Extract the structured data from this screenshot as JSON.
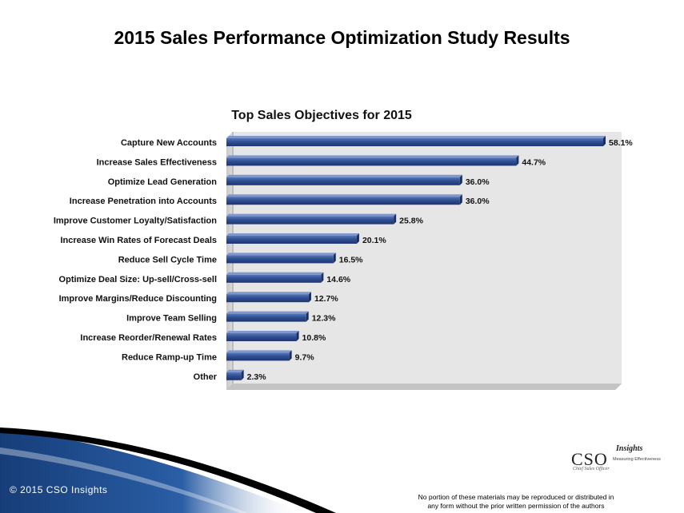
{
  "slide_title": "2015 Sales Performance Optimization Study Results",
  "chart_data": {
    "type": "bar",
    "orientation": "horizontal",
    "title": "Top Sales Objectives for 2015",
    "categories": [
      "Capture New Accounts",
      "Increase Sales Effectiveness",
      "Optimize Lead Generation",
      "Increase Penetration into Accounts",
      "Improve Customer Loyalty/Satisfaction",
      "Increase Win Rates of Forecast Deals",
      "Reduce Sell Cycle Time",
      "Optimize Deal Size: Up-sell/Cross-sell",
      "Improve Margins/Reduce Discounting",
      "Improve Team Selling",
      "Increase Reorder/Renewal Rates",
      "Reduce Ramp-up Time",
      "Other"
    ],
    "values": [
      58.1,
      44.7,
      36.0,
      36.0,
      25.8,
      20.1,
      16.5,
      14.6,
      12.7,
      12.3,
      10.8,
      9.7,
      2.3
    ],
    "data_labels": [
      "58.1%",
      "44.7%",
      "36.0%",
      "36.0%",
      "25.8%",
      "20.1%",
      "16.5%",
      "14.6%",
      "12.7%",
      "12.3%",
      "10.8%",
      "9.7%",
      "2.3%"
    ],
    "xlim": [
      0,
      60
    ],
    "xlabel": "",
    "ylabel": "",
    "grid": false,
    "legend": "none",
    "bar_color": "#2f4f93",
    "plot_background": "#e6e6e6"
  },
  "footer": {
    "copyright": "© 2015 CSO Insights",
    "disclaimer_line1": "No portion of these materials may be reproduced or distributed in",
    "disclaimer_line2": "any form without the prior written permission of the authors"
  },
  "logo": {
    "main": "CSO",
    "script": "Insights",
    "subtitle": "Chief Sales Officer",
    "tagline": "Measuring Effectiveness"
  },
  "colors": {
    "footer_blue": "#1f4e8c",
    "footer_black": "#000000"
  }
}
